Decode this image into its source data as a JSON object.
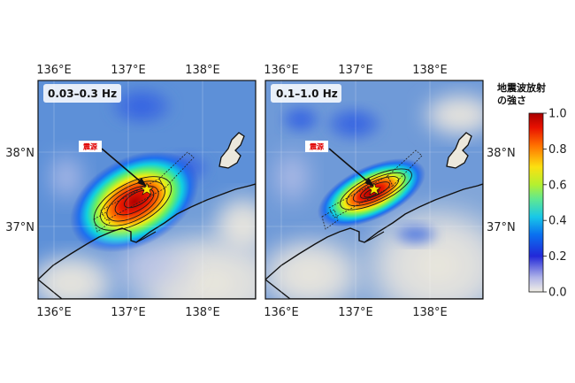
{
  "panels": [
    {
      "label": "0.03–0.3 Hz",
      "epicenter_label": "震源",
      "lon_ticks": [
        "136°E",
        "137°E",
        "138°E"
      ],
      "lat_ticks": [
        "38°N",
        "37°N"
      ]
    },
    {
      "label": "0.1–1.0 Hz",
      "epicenter_label": "震源",
      "lon_ticks": [
        "136°E",
        "137°E",
        "138°E"
      ],
      "lat_ticks": [
        "38°N",
        "37°N"
      ]
    }
  ],
  "colorbar": {
    "title_line1": "地震波放射",
    "title_line2": "の強さ",
    "ticks": [
      "1.0",
      "0.8",
      "0.6",
      "0.4",
      "0.2",
      "0.0"
    ],
    "range": [
      0.0,
      1.0
    ],
    "colormap": "jet-like"
  },
  "colors": {
    "background_blue": "#5b8fd8",
    "low": "#eeeae0",
    "high": "#b40000",
    "star": "#ffe800",
    "epicenter_text": "#e00000"
  }
}
